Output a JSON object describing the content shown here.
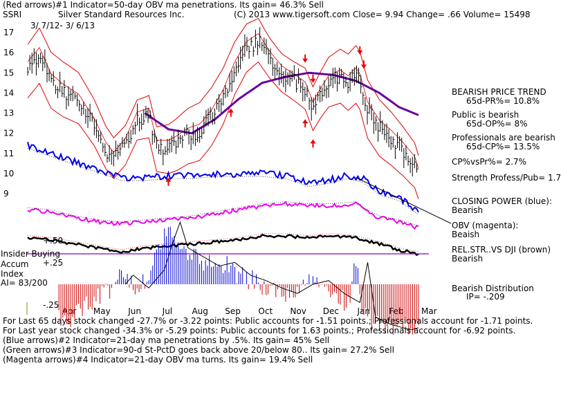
{
  "header": {
    "line1": "(Red arrows)#1 Indicator=50-day OBV ma penetrations.  Its gain= 46.3% Sell",
    "ticker": "SSRI",
    "company": "Silver Standard Resources Inc.",
    "copyright": "(C) 2013 www.tigersoft.com",
    "close_label": "Close=  9.94  Change= .66 Volume= 15498",
    "date_range": "3/ 7/12- 3/ 6/13"
  },
  "right_panel": {
    "trend_title": "BEARISH PRICE TREND",
    "pr": "65d-PR%= 10.8%",
    "public": "Public is bearish",
    "op": "65d-OP%= 8%",
    "professionals": "Professionals are bearish",
    "cp": "65d-CP%= 13.5%",
    "cpvspr": "CP%vsPr%=  2.7%",
    "strength": "Strength Profess/Pub= 1.7",
    "closing_power": "CLOSING POWER (blue):",
    "closing_power_val": "Bearish",
    "obv": "OBV (magenta):",
    "obv_val": "Beaish",
    "relstr": "REL.STR..VS DJI (brown)",
    "relstr_val": "Bearish",
    "distribution": "Bearish Distribution",
    "ip": "IP= -.209"
  },
  "left_panel": {
    "insider": "Insider Buying",
    "accum": "Accum",
    "index": "Index",
    "ai": "AI= 83/200",
    "plus50": "+.50",
    "plus25": "+.25",
    "minus25": "-.25"
  },
  "footer": {
    "line1": "For Last 65 days stock changed -27.7% or -3.22 points:  Public accounts for -1.51 points.;  Professionals account for -1.71 points.",
    "line2": "For Last year stock changed -34.3% or -5.29 points:  Public accounts for  1.63 points.;  Professionals account for -6.92 points.",
    "line3": "(Blue arrows)#2 Indicator=21-day ma penetrations by .5%.  Its gain= 45% Sell",
    "line4": "(Green arrows)#3 Indicator=90-d St-PctD goes back above 20/below 80..  Its gain= 27.2% Sell",
    "line5": "(Magenta arrows)#4 Indicator=21-day OBV ma turns.  Its gain= 19.4% Sell"
  },
  "colors": {
    "price": "#000000",
    "bands": "#dd0000",
    "ma": "#660099",
    "closing_power": "#0000ee",
    "obv": "#ee00ee",
    "relstr": "#000000",
    "accum_pos": "#0000cc",
    "accum_neg": "#cc0000",
    "arrow": "#ee0000",
    "insider_line": "#8800cc"
  },
  "chart_data": {
    "type": "line",
    "title": "Silver Standard Resources Inc. (SSRI) 3/7/12 - 3/6/13",
    "ylim": [
      8.8,
      17.3
    ],
    "price_ticks": [
      "17",
      "16",
      "15",
      "14",
      "13",
      "12",
      "11",
      "10",
      "9"
    ],
    "price_tick_values": [
      17,
      16,
      15,
      14,
      13,
      12,
      11,
      10,
      9
    ],
    "months": [
      "Apr",
      "May",
      "Jun",
      "Jul",
      "Aug",
      "Sep",
      "Oct",
      "Nov",
      "Dec",
      "Jan",
      "Feb",
      "Mar"
    ],
    "price_knots": [
      [
        0,
        15.2
      ],
      [
        3,
        15.9
      ],
      [
        6,
        14.6
      ],
      [
        9,
        14.1
      ],
      [
        13,
        13.6
      ],
      [
        17,
        12.4
      ],
      [
        20,
        11.2
      ],
      [
        22,
        10.7
      ],
      [
        25,
        11.4
      ],
      [
        28,
        12.7
      ],
      [
        31,
        12.9
      ],
      [
        33,
        11.3
      ],
      [
        36,
        11.3
      ],
      [
        38,
        11.5
      ],
      [
        41,
        11.9
      ],
      [
        44,
        12.1
      ],
      [
        47,
        12.8
      ],
      [
        50,
        13.8
      ],
      [
        53,
        15.2
      ],
      [
        56,
        16.2
      ],
      [
        59,
        16.6
      ],
      [
        62,
        15.7
      ],
      [
        65,
        15.0
      ],
      [
        68,
        14.6
      ],
      [
        71,
        14.2
      ],
      [
        73,
        13.2
      ],
      [
        75,
        13.9
      ],
      [
        77,
        14.5
      ],
      [
        80,
        14.8
      ],
      [
        82,
        14.5
      ],
      [
        84,
        14.9
      ],
      [
        85,
        14.6
      ],
      [
        87,
        13.2
      ],
      [
        90,
        12.3
      ],
      [
        93,
        11.8
      ],
      [
        96,
        11.2
      ],
      [
        99,
        10.5
      ],
      [
        100,
        9.9
      ]
    ],
    "ma_knots": [
      [
        30,
        13.0
      ],
      [
        36,
        12.2
      ],
      [
        42,
        12.0
      ],
      [
        48,
        12.7
      ],
      [
        54,
        13.7
      ],
      [
        60,
        14.5
      ],
      [
        66,
        14.8
      ],
      [
        72,
        15.0
      ],
      [
        78,
        14.9
      ],
      [
        84,
        14.6
      ],
      [
        90,
        14.0
      ],
      [
        95,
        13.3
      ],
      [
        100,
        12.9
      ]
    ],
    "closing_power_knots": [
      [
        0,
        11.4
      ],
      [
        6,
        11.0
      ],
      [
        12,
        10.6
      ],
      [
        18,
        10.2
      ],
      [
        24,
        9.8
      ],
      [
        30,
        9.8
      ],
      [
        36,
        9.9
      ],
      [
        42,
        9.9
      ],
      [
        48,
        10.0
      ],
      [
        54,
        10.0
      ],
      [
        60,
        10.0
      ],
      [
        66,
        9.9
      ],
      [
        72,
        9.5
      ],
      [
        78,
        9.7
      ],
      [
        82,
        9.9
      ],
      [
        86,
        9.7
      ],
      [
        90,
        9.1
      ],
      [
        95,
        8.8
      ],
      [
        100,
        8.1
      ]
    ],
    "obv_knots": [
      [
        0,
        8.2
      ],
      [
        6,
        8.1
      ],
      [
        12,
        7.8
      ],
      [
        18,
        7.6
      ],
      [
        24,
        7.5
      ],
      [
        30,
        7.6
      ],
      [
        36,
        7.7
      ],
      [
        42,
        7.8
      ],
      [
        48,
        8.0
      ],
      [
        54,
        8.2
      ],
      [
        60,
        8.4
      ],
      [
        66,
        8.5
      ],
      [
        72,
        8.4
      ],
      [
        78,
        8.4
      ],
      [
        84,
        8.5
      ],
      [
        86,
        8.2
      ],
      [
        90,
        7.8
      ],
      [
        95,
        7.6
      ],
      [
        100,
        7.3
      ]
    ],
    "relstr_knots": [
      [
        0,
        6.8
      ],
      [
        6,
        6.7
      ],
      [
        12,
        6.5
      ],
      [
        18,
        6.3
      ],
      [
        24,
        6.1
      ],
      [
        30,
        6.3
      ],
      [
        36,
        6.4
      ],
      [
        42,
        6.5
      ],
      [
        48,
        6.6
      ],
      [
        54,
        6.7
      ],
      [
        60,
        6.9
      ],
      [
        66,
        6.9
      ],
      [
        72,
        6.8
      ],
      [
        78,
        6.9
      ],
      [
        84,
        6.8
      ],
      [
        90,
        6.5
      ],
      [
        95,
        6.2
      ],
      [
        100,
        6.0
      ]
    ],
    "accum_range": [
      -0.25,
      0.5
    ],
    "accum_ticks": [
      "+.50",
      "+.25",
      "-.25"
    ],
    "accum_knots": [
      [
        0,
        -0.2
      ],
      [
        5,
        -0.15
      ],
      [
        10,
        -0.22
      ],
      [
        16,
        -0.1
      ],
      [
        20,
        -0.05
      ],
      [
        24,
        0.05
      ],
      [
        28,
        -0.02
      ],
      [
        32,
        0.08
      ],
      [
        34,
        0.22
      ],
      [
        36,
        0.34
      ],
      [
        38,
        0.2
      ],
      [
        42,
        0.15
      ],
      [
        46,
        0.1
      ],
      [
        50,
        0.12
      ],
      [
        54,
        0.05
      ],
      [
        58,
        0.02
      ],
      [
        62,
        -0.02
      ],
      [
        66,
        -0.05
      ],
      [
        70,
        0.0
      ],
      [
        74,
        0.02
      ],
      [
        78,
        -0.05
      ],
      [
        82,
        -0.1
      ],
      [
        84,
        0.12
      ],
      [
        86,
        -0.18
      ],
      [
        90,
        -0.22
      ],
      [
        95,
        -0.25
      ],
      [
        100,
        -0.22
      ]
    ],
    "buy_arrow_days": [
      36,
      52,
      71,
      73
    ],
    "sell_arrow_days": [
      71,
      73,
      85,
      86
    ]
  }
}
